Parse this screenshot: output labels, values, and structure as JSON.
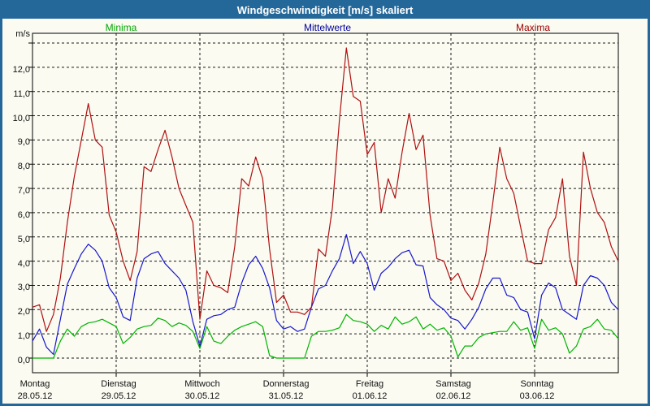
{
  "window": {
    "title": "Windgeschwindigkeit [m/s] skaliert"
  },
  "legend": [
    {
      "label": "Minima",
      "color": "#00a500"
    },
    {
      "label": "Mittelwerte",
      "color": "#0000a0"
    },
    {
      "label": "Maxima",
      "color": "#a00000"
    }
  ],
  "chart_data": {
    "type": "line",
    "title": "Windgeschwindigkeit [m/s] skaliert",
    "ylabel": "m/s",
    "xlabel": "",
    "ylim": [
      0,
      13
    ],
    "grid": "dashed",
    "legend_position": "top",
    "y_tick_labels": [
      "0,0",
      "1,0",
      "2,0",
      "3,0",
      "4,0",
      "5,0",
      "6,0",
      "7,0",
      "8,0",
      "9,0",
      "10,0",
      "11,0",
      "12,0"
    ],
    "y_gridline_values": [
      0,
      1,
      2,
      3,
      4,
      5,
      6,
      7,
      8,
      9,
      10,
      11,
      12,
      13
    ],
    "x_days": [
      {
        "name": "Montag",
        "date": "28.05.12"
      },
      {
        "name": "Dienstag",
        "date": "29.05.12"
      },
      {
        "name": "Mittwoch",
        "date": "30.05.12"
      },
      {
        "name": "Donnerstag",
        "date": "31.05.12"
      },
      {
        "name": "Freitag",
        "date": "01.06.12"
      },
      {
        "name": "Samstag",
        "date": "02.06.12"
      },
      {
        "name": "Sonntag",
        "date": "03.06.12"
      }
    ],
    "x_unit": "hours",
    "x_start_hour": 0,
    "x_step_hours": 2,
    "x_range": [
      0,
      168
    ],
    "series": [
      {
        "name": "Minima",
        "color": "#00b400",
        "values": [
          0,
          0,
          0,
          0,
          0.7,
          1.2,
          0.9,
          1.3,
          1.45,
          1.5,
          1.6,
          1.45,
          1.3,
          0.6,
          0.85,
          1.2,
          1.3,
          1.35,
          1.65,
          1.55,
          1.3,
          1.45,
          1.35,
          1.1,
          0.4,
          1.3,
          0.7,
          0.6,
          0.9,
          1.15,
          1.3,
          1.4,
          1.5,
          1.3,
          0.1,
          0,
          0,
          0,
          0,
          0,
          0.9,
          1.1,
          1.1,
          1.15,
          1.25,
          1.8,
          1.55,
          1.5,
          1.4,
          1.1,
          1.35,
          1.2,
          1.7,
          1.4,
          1.5,
          1.7,
          1.2,
          1.4,
          1.15,
          1.25,
          0.9,
          0.05,
          0.5,
          0.5,
          0.85,
          1.0,
          1.05,
          1.1,
          1.1,
          1.5,
          1.15,
          1.25,
          0.4,
          1.6,
          1.15,
          1.25,
          1.0,
          0.2,
          0.5,
          1.2,
          1.3,
          1.6,
          1.2,
          1.15,
          0.8
        ]
      },
      {
        "name": "Mittelwerte",
        "color": "#1818cc",
        "values": [
          0.7,
          1.2,
          0.45,
          0.15,
          1.6,
          3.05,
          3.7,
          4.3,
          4.7,
          4.45,
          4.0,
          2.9,
          2.5,
          1.7,
          1.55,
          3.3,
          4.1,
          4.3,
          4.4,
          3.9,
          3.6,
          3.3,
          2.8,
          1.5,
          0.5,
          1.6,
          1.75,
          1.8,
          2.0,
          2.1,
          3.1,
          3.85,
          4.2,
          3.7,
          2.9,
          1.55,
          1.2,
          1.3,
          1.1,
          1.2,
          2.1,
          2.85,
          3.0,
          3.6,
          4.1,
          5.1,
          3.9,
          4.4,
          3.9,
          2.8,
          3.5,
          3.75,
          4.1,
          4.35,
          4.45,
          3.85,
          3.8,
          2.5,
          2.2,
          2.0,
          1.65,
          1.55,
          1.2,
          1.6,
          2.1,
          2.85,
          3.3,
          3.3,
          2.6,
          2.5,
          2.0,
          1.9,
          0.8,
          2.6,
          3.1,
          2.9,
          2.0,
          1.8,
          1.6,
          3.0,
          3.4,
          3.3,
          3.0,
          2.3,
          2.0
        ]
      },
      {
        "name": "Maxima",
        "color": "#b01010",
        "values": [
          2.1,
          2.2,
          1.1,
          1.8,
          3.3,
          5.6,
          7.5,
          9.0,
          10.5,
          9.0,
          8.7,
          5.9,
          5.2,
          4.0,
          3.2,
          4.4,
          7.9,
          7.7,
          8.6,
          9.4,
          8.3,
          7.0,
          6.3,
          5.6,
          1.6,
          3.6,
          3.0,
          2.9,
          2.7,
          4.6,
          7.4,
          7.1,
          8.3,
          7.4,
          4.5,
          2.3,
          2.6,
          1.9,
          1.9,
          1.8,
          2.1,
          4.5,
          4.2,
          6.2,
          9.8,
          12.8,
          10.8,
          10.6,
          8.4,
          8.9,
          6.0,
          7.4,
          6.6,
          8.5,
          10.1,
          8.6,
          9.2,
          5.9,
          4.1,
          4.0,
          3.2,
          3.5,
          2.8,
          2.4,
          3.1,
          4.3,
          6.4,
          8.7,
          7.4,
          6.8,
          5.4,
          4.0,
          3.9,
          3.9,
          5.3,
          5.8,
          7.4,
          4.2,
          3.0,
          8.5,
          7.0,
          6.0,
          5.6,
          4.6,
          4.0
        ]
      }
    ]
  }
}
